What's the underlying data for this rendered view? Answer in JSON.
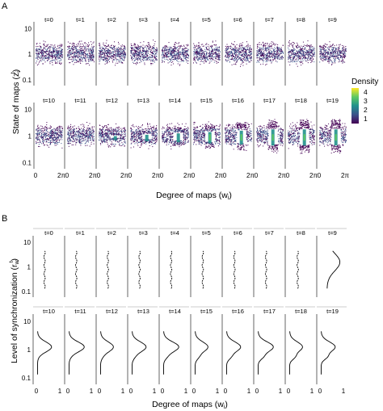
{
  "panel_a": {
    "letter": "A",
    "ylabel": "State of maps (z",
    "ylabel_sup": "t",
    "ylabel_sub": "i",
    "ylabel_close": ")",
    "xlabel": "Degree of maps (w",
    "xlabel_sub": "i",
    "xlabel_close": ")",
    "legend_title": "Density",
    "legend_ticks": [
      "4",
      "3",
      "2",
      "1"
    ],
    "colors": {
      "dark": "#440154",
      "mid": "#3b528b",
      "teal": "#21918c",
      "green": "#5ec962",
      "yellow": "#fde725"
    }
  },
  "panel_b": {
    "letter": "B",
    "ylabel": "Level of synchronization (r",
    "ylabel_sup": "t",
    "ylabel_sub": "w",
    "ylabel_close": ")",
    "xlabel": "Degree of maps (w",
    "xlabel_sub": "i",
    "xlabel_close": ")"
  },
  "chart_data": [
    {
      "type": "scatter",
      "facets": [
        "t=0",
        "t=1",
        "t=2",
        "t=3",
        "t=4",
        "t=5",
        "t=6",
        "t=7",
        "t=8",
        "t=9",
        "t=10",
        "t=11",
        "t=12",
        "t=13",
        "t=14",
        "t=15",
        "t=16",
        "t=17",
        "t=18",
        "t=19"
      ],
      "x_tick_labels": [
        "0",
        "2π"
      ],
      "xlim": [
        0,
        6.283
      ],
      "y_tick_labels": [
        "10",
        "1",
        "0.1"
      ],
      "y_scale": "log",
      "ylim": [
        0.06,
        16
      ],
      "color_scale": "Density",
      "color_range": [
        0.5,
        4.5
      ],
      "color_ticks": [
        1,
        2,
        3,
        4
      ],
      "legend_position": "right"
    },
    {
      "type": "line",
      "facets": [
        "t=0",
        "t=1",
        "t=2",
        "t=3",
        "t=4",
        "t=5",
        "t=6",
        "t=7",
        "t=8",
        "t=9",
        "t=10",
        "t=11",
        "t=12",
        "t=13",
        "t=14",
        "t=15",
        "t=16",
        "t=17",
        "t=18",
        "t=19"
      ],
      "x_tick_labels": [
        "0",
        "1"
      ],
      "xlim": [
        0,
        1
      ],
      "y_tick_labels": [
        "10",
        "1",
        "0.1"
      ],
      "y_scale": "log",
      "ylim": [
        0.06,
        16
      ]
    }
  ]
}
